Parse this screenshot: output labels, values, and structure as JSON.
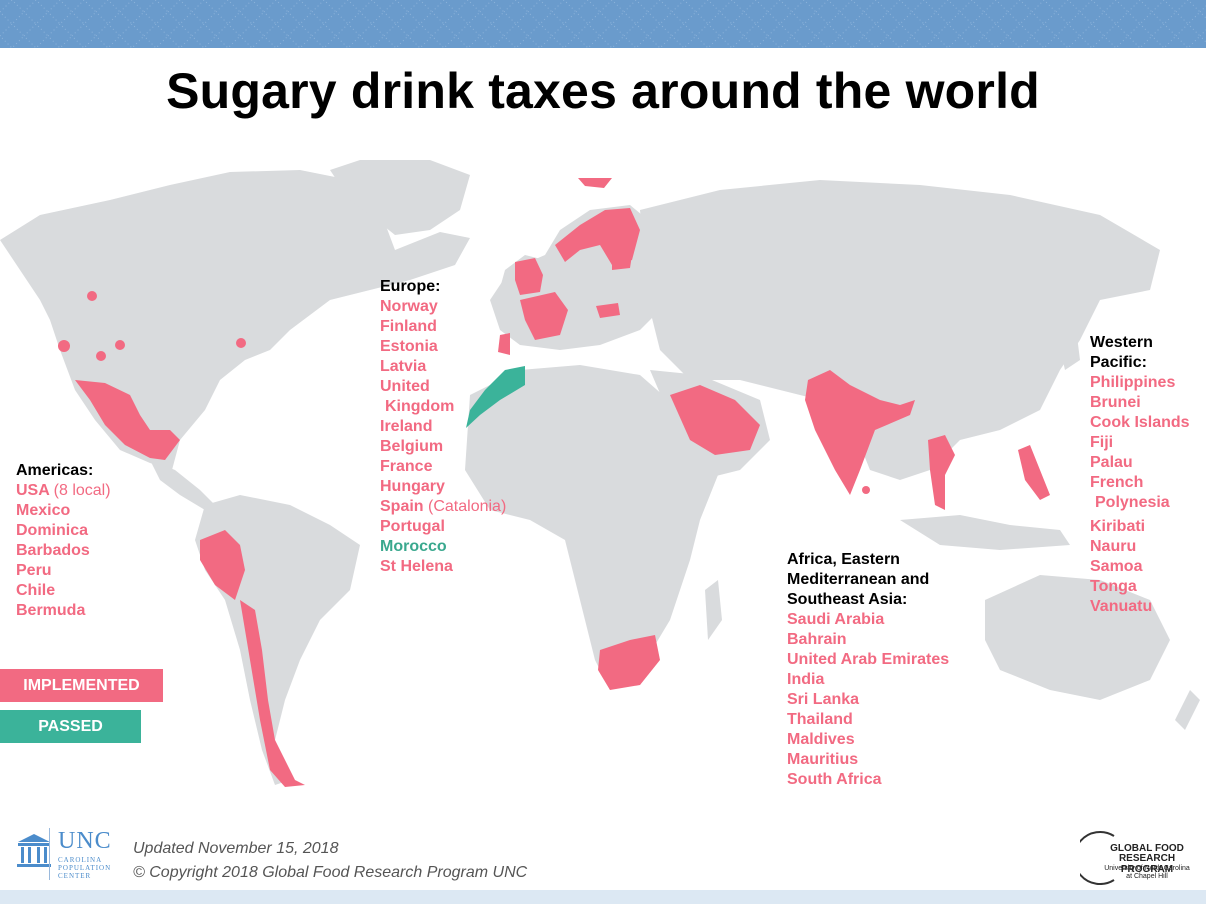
{
  "title": "Sugary drink taxes around the world",
  "colors": {
    "implemented": "#f26a82",
    "passed": "#3bb39a",
    "land": "#d9dbdd",
    "header_band": "#6a9bcc"
  },
  "regions": {
    "americas": {
      "heading": "Americas:",
      "usa": "USA",
      "usa_note": "(8 local)",
      "countries": [
        "Mexico",
        "Dominica",
        "Barbados",
        "Peru",
        "Chile",
        "Bermuda"
      ]
    },
    "europe": {
      "heading": "Europe:",
      "countries": [
        "Norway",
        "Finland",
        "Estonia",
        "Latvia",
        "United",
        "Kingdom",
        "Ireland",
        "Belgium",
        "France",
        "Hungary"
      ],
      "spain": "Spain",
      "spain_note": "(Catalonia)",
      "portugal": "Portugal",
      "morocco": "Morocco",
      "st_helena": "St Helena"
    },
    "africa_emed_sea": {
      "heading_1": "Africa, Eastern",
      "heading_2": "Mediterranean and",
      "heading_3": "Southeast Asia:",
      "countries": [
        "Saudi Arabia",
        "Bahrain",
        "United Arab Emirates",
        "India",
        "Sri Lanka",
        "Thailand",
        "Maldives",
        "Mauritius",
        "South Africa"
      ]
    },
    "western_pacific": {
      "heading_1": "Western",
      "heading_2": "Pacific:",
      "countries": [
        "Philippines",
        "Brunei",
        "Cook Islands",
        "Fiji",
        "Palau",
        "French",
        "Polynesia",
        "Kiribati",
        "Nauru",
        "Samoa",
        "Tonga",
        "Vanuatu"
      ]
    }
  },
  "legend": {
    "implemented": "IMPLEMENTED",
    "passed": "PASSED"
  },
  "footer": {
    "updated": "Updated November 15, 2018",
    "copyright": "© Copyright 2018 Global Food Research Program UNC",
    "unc_word": "UNC",
    "unc_sub_1": "CAROLINA",
    "unc_sub_2": "POPULATION",
    "unc_sub_3": "CENTER",
    "gfrp_1": "GLOBAL FOOD",
    "gfrp_2": "RESEARCH PROGRAM",
    "gfrp_3": "University of North Carolina",
    "gfrp_4": "at Chapel Hill"
  }
}
